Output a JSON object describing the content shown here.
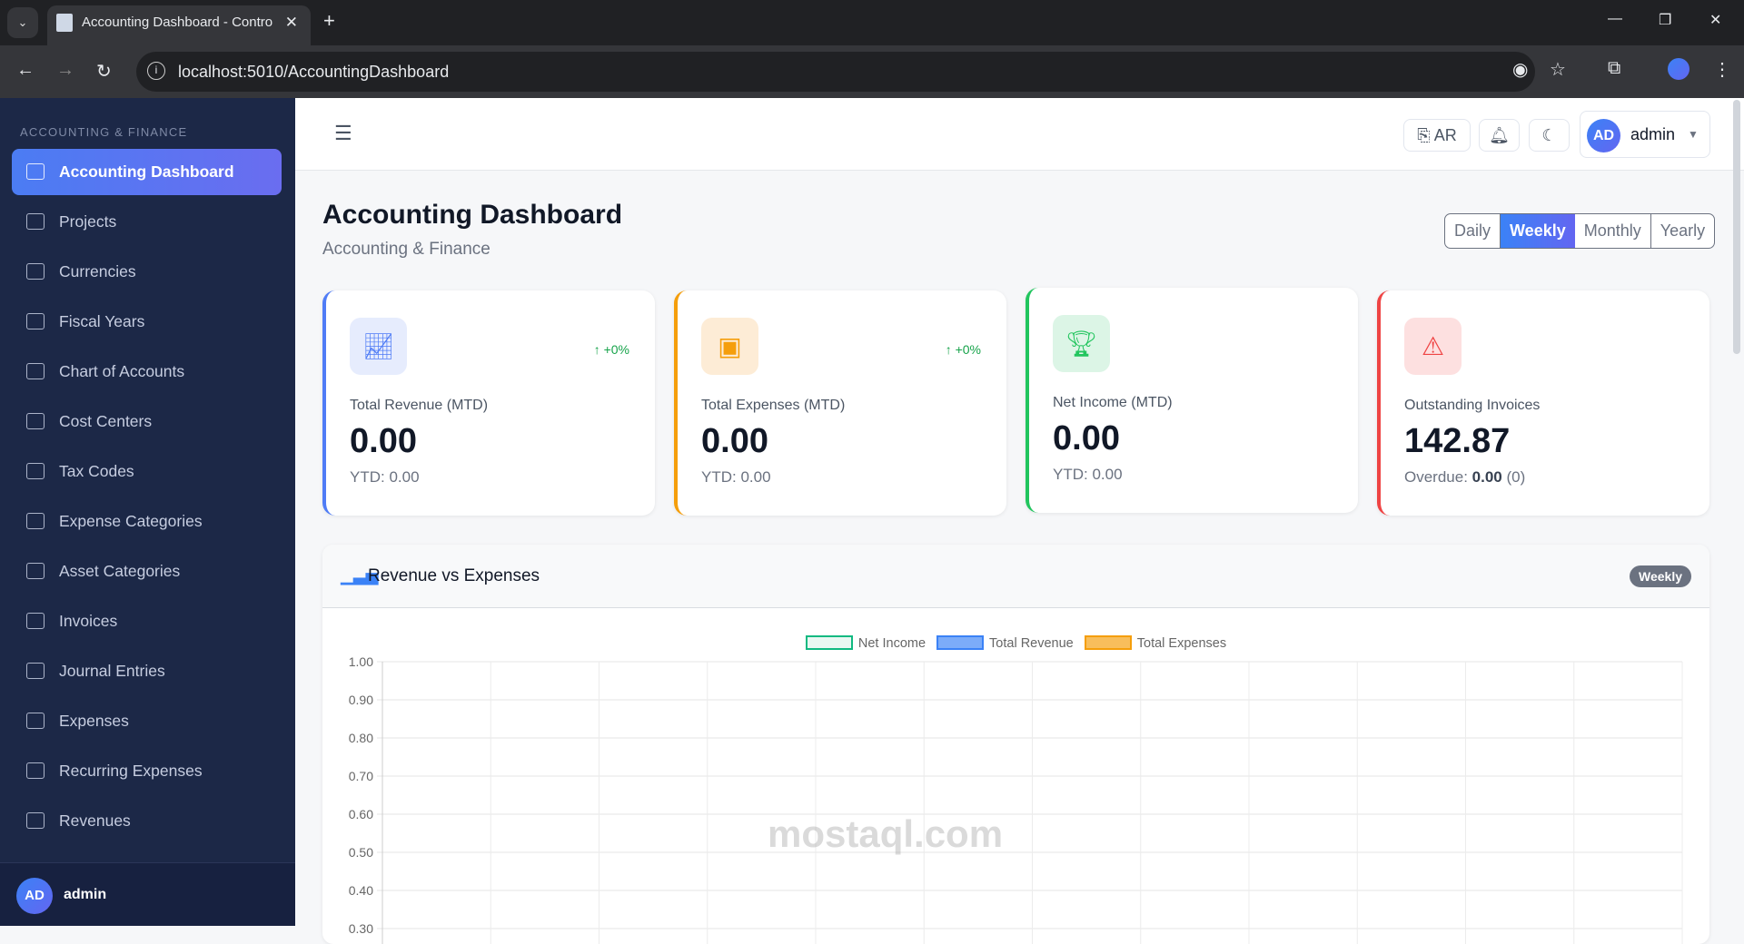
{
  "browser": {
    "tab_title": "Accounting Dashboard - Contro",
    "url": "localhost:5010/AccountingDashboard"
  },
  "sidebar": {
    "section": "ACCOUNTING & FINANCE",
    "items": [
      {
        "label": "Accounting Dashboard",
        "icon": "gauge-icon",
        "active": true
      },
      {
        "label": "Projects",
        "icon": "folder-icon"
      },
      {
        "label": "Currencies",
        "icon": "coins-icon"
      },
      {
        "label": "Fiscal Years",
        "icon": "calendar-icon"
      },
      {
        "label": "Chart of Accounts",
        "icon": "sitemap-icon"
      },
      {
        "label": "Cost Centers",
        "icon": "building-icon"
      },
      {
        "label": "Tax Codes",
        "icon": "percent-icon"
      },
      {
        "label": "Expense Categories",
        "icon": "list-icon"
      },
      {
        "label": "Asset Categories",
        "icon": "box-icon"
      },
      {
        "label": "Invoices",
        "icon": "invoice-icon"
      },
      {
        "label": "Journal Entries",
        "icon": "journal-icon"
      },
      {
        "label": "Expenses",
        "icon": "money-icon"
      },
      {
        "label": "Recurring Expenses",
        "icon": "sync-icon"
      },
      {
        "label": "Revenues",
        "icon": "chart-line-icon"
      }
    ],
    "user": {
      "initials": "AD",
      "name": "admin"
    }
  },
  "header": {
    "lang": "AR",
    "user_initials": "AD",
    "user_name": "admin"
  },
  "page": {
    "title": "Accounting Dashboard",
    "subtitle": "Accounting & Finance",
    "periods": [
      "Daily",
      "Weekly",
      "Monthly",
      "Yearly"
    ],
    "active_period": "Weekly"
  },
  "cards": [
    {
      "label": "Total Revenue (MTD)",
      "value": "0.00",
      "sub": "YTD: 0.00",
      "change": "↑ +0%",
      "color": "#4f7cf6"
    },
    {
      "label": "Total Expenses (MTD)",
      "value": "0.00",
      "sub": "YTD: 0.00",
      "change": "↑ +0%",
      "color": "#f59e0b"
    },
    {
      "label": "Net Income (MTD)",
      "value": "0.00",
      "sub": "YTD: 0.00",
      "color": "#22c55e"
    },
    {
      "label": "Outstanding Invoices",
      "value": "142.87",
      "sub_prefix": "Overdue: ",
      "sub_bold": "0.00",
      "sub_suffix": " (0)",
      "color": "#ef4444"
    }
  ],
  "chart_card": {
    "title": "Revenue vs Expenses",
    "badge": "Weekly"
  },
  "chart_data": {
    "type": "bar",
    "title": "Revenue vs Expenses",
    "legend_position": "top",
    "grid": true,
    "series": [
      {
        "name": "Net Income",
        "color": "#10b981",
        "values": []
      },
      {
        "name": "Total Revenue",
        "color": "#3b82f6",
        "values": []
      },
      {
        "name": "Total Expenses",
        "color": "#f59e0b",
        "values": []
      }
    ],
    "yticks": [
      "1.00",
      "0.90",
      "0.80",
      "0.70",
      "0.60",
      "0.50",
      "0.40",
      "0.30"
    ],
    "ylim": [
      0,
      1
    ]
  },
  "watermark": "mostaql.com"
}
